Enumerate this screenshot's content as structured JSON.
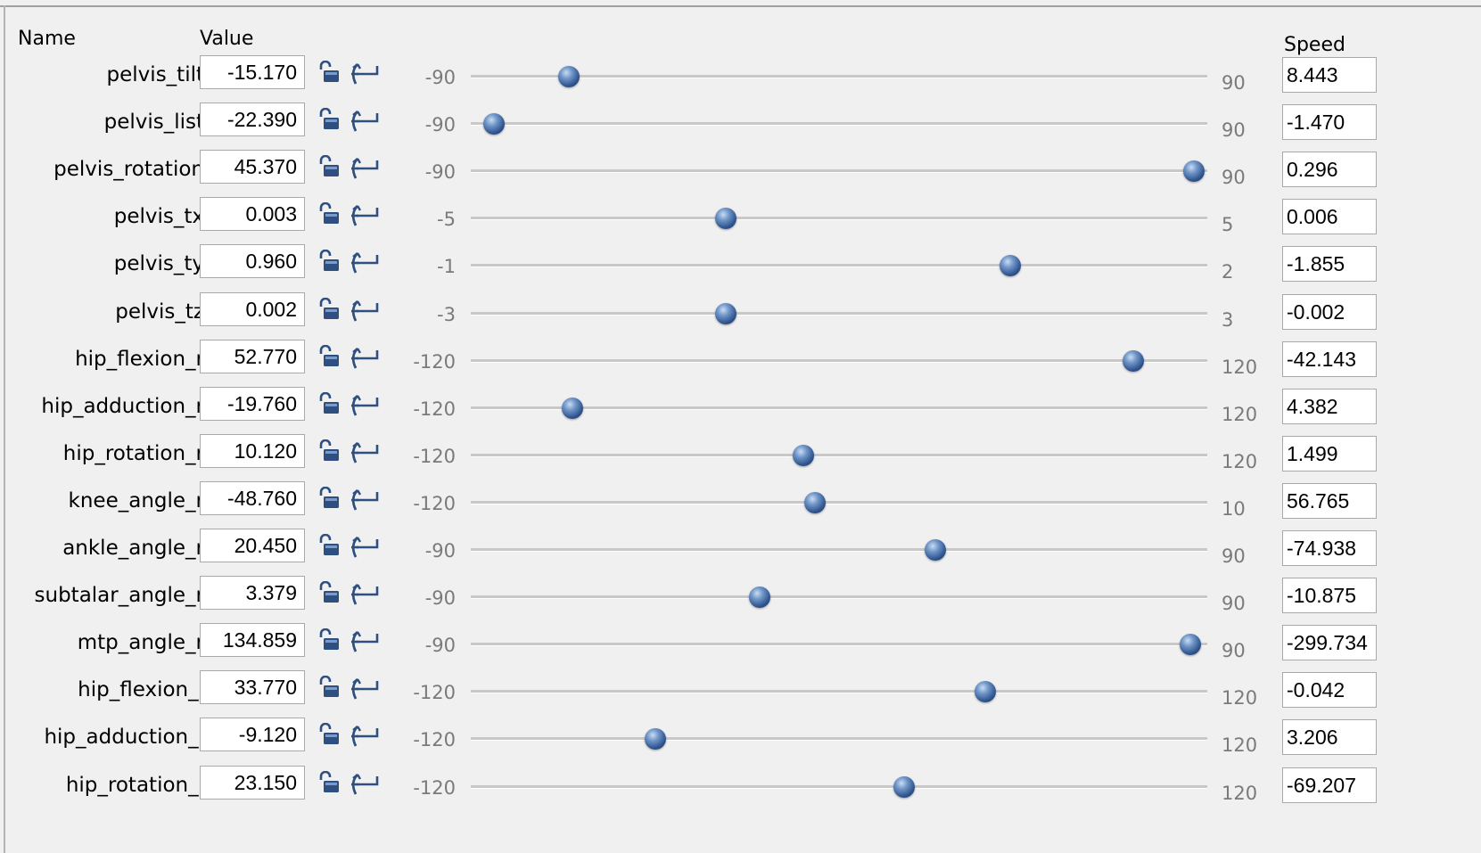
{
  "headers": {
    "name": "Name",
    "value": "Value",
    "speed": "Speed"
  },
  "icons": {
    "lock": "lock-icon",
    "clamp": "clamp-icon"
  },
  "colors": {
    "knob": "#2d528c",
    "track": "#c8c8c8",
    "range_label": "#7a7a7a"
  },
  "coordinates": [
    {
      "name": "pelvis_tilt",
      "value": "-15.170",
      "min": "-90",
      "max": "90",
      "position": 0.133,
      "speed": "8.443"
    },
    {
      "name": "pelvis_list",
      "value": "-22.390",
      "min": "-90",
      "max": "90",
      "position": 0.031,
      "speed": "-1.470"
    },
    {
      "name": "pelvis_rotation",
      "value": "45.370",
      "min": "-90",
      "max": "90",
      "position": 0.982,
      "speed": "0.296"
    },
    {
      "name": "pelvis_tx",
      "value": "0.003",
      "min": "-5",
      "max": "5",
      "position": 0.346,
      "speed": "0.006"
    },
    {
      "name": "pelvis_ty",
      "value": "0.960",
      "min": "-1",
      "max": "2",
      "position": 0.732,
      "speed": "-1.855"
    },
    {
      "name": "pelvis_tz",
      "value": "0.002",
      "min": "-3",
      "max": "3",
      "position": 0.346,
      "speed": "-0.002"
    },
    {
      "name": "hip_flexion_r",
      "value": "52.770",
      "min": "-120",
      "max": "120",
      "position": 0.899,
      "speed": "-42.143"
    },
    {
      "name": "hip_adduction_r",
      "value": "-19.760",
      "min": "-120",
      "max": "120",
      "position": 0.138,
      "speed": "4.382"
    },
    {
      "name": "hip_rotation_r",
      "value": "10.120",
      "min": "-120",
      "max": "120",
      "position": 0.451,
      "speed": "1.499"
    },
    {
      "name": "knee_angle_r",
      "value": "-48.760",
      "min": "-120",
      "max": "10",
      "position": 0.467,
      "speed": "56.765"
    },
    {
      "name": "ankle_angle_r",
      "value": "20.450",
      "min": "-90",
      "max": "90",
      "position": 0.631,
      "speed": "-74.938"
    },
    {
      "name": "subtalar_angle_r",
      "value": "3.379",
      "min": "-90",
      "max": "90",
      "position": 0.392,
      "speed": "-10.875"
    },
    {
      "name": "mtp_angle_r",
      "value": "134.859",
      "min": "-90",
      "max": "90",
      "position": 0.977,
      "speed": "-299.734"
    },
    {
      "name": "hip_flexion_l",
      "value": "33.770",
      "min": "-120",
      "max": "120",
      "position": 0.699,
      "speed": "-0.042"
    },
    {
      "name": "hip_adduction_l",
      "value": "-9.120",
      "min": "-120",
      "max": "120",
      "position": 0.25,
      "speed": "3.206"
    },
    {
      "name": "hip_rotation_l",
      "value": "23.150",
      "min": "-120",
      "max": "120",
      "position": 0.588,
      "speed": "-69.207"
    }
  ]
}
